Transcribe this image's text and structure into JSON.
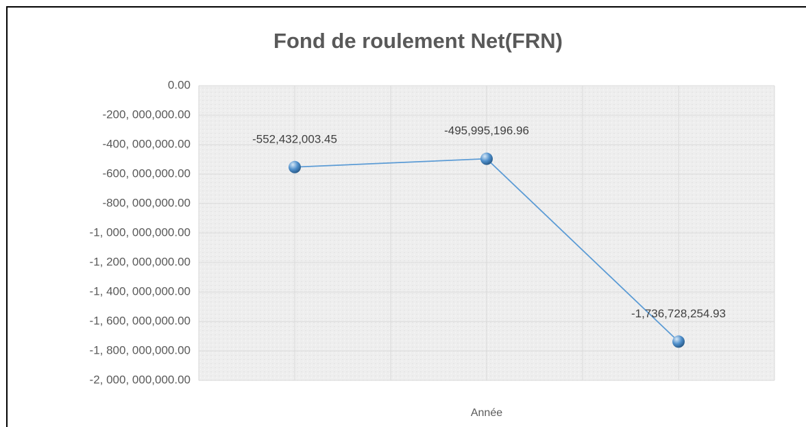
{
  "chart_data": {
    "type": "line",
    "title": "Fond de roulement Net(FRN)",
    "x_label": "Année",
    "categories": [
      null,
      null,
      null
    ],
    "series": [
      {
        "name": null,
        "color": "#5b9bd5",
        "values": [
          -552432003.45,
          -495995196.96,
          -1736728254.93
        ],
        "value_labels": [
          "-552,432,003.45",
          "-495,995,196.96",
          "-1,736,728,254.93"
        ]
      }
    ],
    "ylim": [
      -2000000000,
      0
    ],
    "yticks": [
      {
        "value": 0,
        "label": "0.00"
      },
      {
        "value": -200000000,
        "label": "-200, 000,000.00"
      },
      {
        "value": -400000000,
        "label": "-400, 000,000.00"
      },
      {
        "value": -600000000,
        "label": "-600, 000,000.00"
      },
      {
        "value": -800000000,
        "label": "-800, 000,000.00"
      },
      {
        "value": -1000000000,
        "label": "-1, 000, 000,000.00"
      },
      {
        "value": -1200000000,
        "label": "-1, 200, 000,000.00"
      },
      {
        "value": -1400000000,
        "label": "-1, 400, 000,000.00"
      },
      {
        "value": -1600000000,
        "label": "-1, 600, 000,000.00"
      },
      {
        "value": -1800000000,
        "label": "-1, 800, 000,000.00"
      },
      {
        "value": -2000000000,
        "label": "-2, 000, 000,000.00"
      }
    ],
    "grid": true
  }
}
